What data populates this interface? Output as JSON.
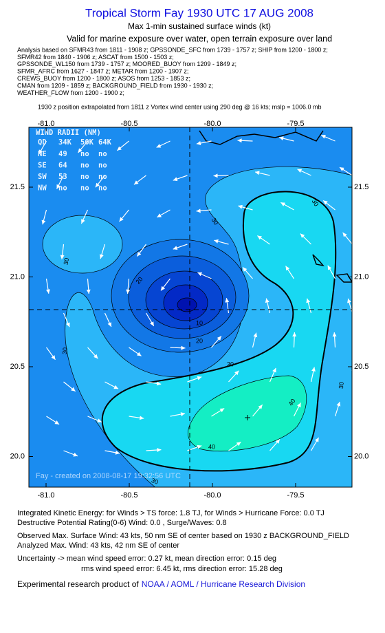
{
  "header": {
    "title": "Tropical Storm Fay 1930 UTC 17 AUG 2008",
    "subtitle": "Max 1-min sustained surface winds (kt)",
    "validity": "Valid for marine exposure over water, open terrain exposure over land",
    "sources": [
      "Analysis based on  SFMR43 from 1811 - 1908 z;  GPSSONDE_SFC from 1739 - 1757 z;  SHIP from 1200 - 1800 z;",
      "SFMR42 from 1840 - 1906 z;  ASCAT from 1500 - 1503 z;",
      "GPSSONDE_WL150 from 1739 - 1757 z;  MOORED_BUOY from 1209 - 1849 z;",
      "SFMR_AFRC from 1627 - 1847 z;  METAR from 1200 - 1907 z;",
      "CREWS_BUOY from 1200 - 1800 z;  ASOS from 1253 - 1853 z;",
      "CMAN from 1209 - 1859 z;  BACKGROUND_FIELD from 1930 - 1930 z;",
      "WEATHER_FLOW from 1200 - 1900 z;"
    ],
    "note": "1930 z position extrapolated from 1811 z Vortex wind center using 290 deg @ 16 kts; mslp = 1006.0 mb"
  },
  "map": {
    "x_ticks": [
      "-81.0",
      "-80.5",
      "-80.0",
      "-79.5"
    ],
    "y_ticks": [
      "21.5",
      "21.0",
      "20.5",
      "20.0"
    ],
    "contour_labels": [
      "30",
      "30",
      "30",
      "20",
      "10",
      "20",
      "30",
      "30",
      "30",
      "40",
      "40",
      "30"
    ],
    "wind_radii": {
      "title": "WIND RADII (NM)",
      "header": [
        "QD",
        "34K",
        "50K",
        "64K"
      ],
      "rows": [
        [
          "NE",
          "49",
          "no",
          "no"
        ],
        [
          "SE",
          "64",
          "no",
          "no"
        ],
        [
          "SW",
          "53",
          "no",
          "no"
        ],
        [
          "NW",
          "no",
          "no",
          "no"
        ]
      ]
    },
    "credit": "Fay - created on 2008-08-17 19:32:56 UTC"
  },
  "footer": {
    "ike": "Integrated Kinetic Energy:  for Winds > TS force: 1.8 TJ,  for Winds > Hurricane Force: 0.0 TJ",
    "dpr": "Destructive Potential Rating(0-6)   Wind: 0.0 , Surge/Waves: 0.8",
    "observed": "Observed Max. Surface Wind: 43 kts, 50 nm SE of center based on 1930 z BACKGROUND_FIELD",
    "analyzed": "Analyzed Max. Wind: 43 kts, 42 nm SE of center",
    "uncertainty_mean": "Uncertainty -> mean wind speed error: 0.27 kt,   mean direction error: 0.15 deg",
    "uncertainty_rms": "rms wind speed error: 6.45 kt,   rms direction error: 15.28 deg",
    "product": "Experimental research product of",
    "link": "NOAA / AOML / Hurricane Research Division"
  }
}
